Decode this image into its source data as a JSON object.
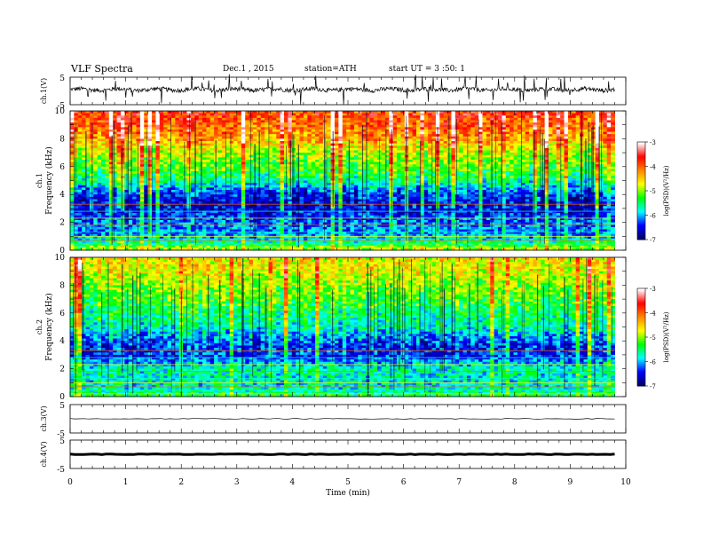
{
  "header": {
    "title": "VLF Spectra",
    "date": "Dec.1 , 2015",
    "station": "station=ATH",
    "start_ut": "start UT = 3 :50: 1"
  },
  "chart_data": [
    {
      "type": "line",
      "panel": "ch1-waveform",
      "ylabel": "ch.1(V)",
      "ylim": [
        -5,
        5
      ],
      "yticks": [
        "5",
        "-5"
      ],
      "xlim": [
        0,
        10
      ],
      "x_end": 9.8
    },
    {
      "type": "heatmap",
      "panel": "ch1-spectrogram",
      "ylabel": "ch.1",
      "ylabel2": "Frequency (kHz)",
      "ylim": [
        0,
        10
      ],
      "yticks": [
        "0",
        "2",
        "4",
        "6",
        "8",
        "10"
      ],
      "xlim": [
        0,
        10
      ],
      "x_end": 9.8,
      "colorbar": {
        "label": "log(PSD)(V²/Hz)",
        "range": [
          -7,
          -3
        ],
        "ticks": [
          "-3",
          "-4",
          "-5",
          "-6",
          "-7"
        ],
        "colormap": [
          "#000066",
          "#0000ff",
          "#00ffff",
          "#00ff00",
          "#ffff00",
          "#ff8800",
          "#ff0000",
          "#ffffff"
        ]
      },
      "intensity_profile": {
        "freq_khz": [
          0,
          0.5,
          1,
          2,
          3,
          3.5,
          4,
          5,
          6,
          7,
          8,
          9,
          10
        ],
        "log_psd": [
          -5.0,
          -5.6,
          -6.2,
          -6.3,
          -6.7,
          -6.8,
          -6.6,
          -5.8,
          -5.4,
          -5.1,
          -4.5,
          -4.2,
          -4.0
        ]
      }
    },
    {
      "type": "heatmap",
      "panel": "ch2-spectrogram",
      "ylabel": "ch.2",
      "ylabel2": "Frequency (kHz)",
      "ylim": [
        0,
        10
      ],
      "yticks": [
        "0",
        "2",
        "4",
        "6",
        "8",
        "10"
      ],
      "xlim": [
        0,
        10
      ],
      "x_end": 9.8,
      "colorbar": {
        "label": "log(PSD)(V²/Hz)",
        "range": [
          -7,
          -3
        ],
        "ticks": [
          "-3",
          "-4",
          "-5",
          "-6",
          "-7"
        ],
        "colormap": [
          "#000066",
          "#0000ff",
          "#00ffff",
          "#00ff00",
          "#ffff00",
          "#ff8800",
          "#ff0000",
          "#ffffff"
        ]
      },
      "intensity_profile": {
        "freq_khz": [
          0,
          0.5,
          1,
          2,
          3,
          3.5,
          4,
          5,
          6,
          7,
          8,
          9,
          10
        ],
        "log_psd": [
          -5.5,
          -5.8,
          -5.9,
          -5.8,
          -6.5,
          -6.6,
          -6.4,
          -5.9,
          -5.7,
          -5.4,
          -5.2,
          -4.9,
          -4.8
        ]
      }
    },
    {
      "type": "line",
      "panel": "ch3-waveform",
      "ylabel": "ch.3(V)",
      "ylim": [
        -5,
        5
      ],
      "yticks": [
        "5",
        "-5"
      ],
      "xlim": [
        0,
        10
      ],
      "x_end": 9.8,
      "level": 0.0
    },
    {
      "type": "line",
      "panel": "ch4-waveform",
      "ylabel": "ch.4(V)",
      "ylim": [
        -5,
        5
      ],
      "yticks": [
        "5",
        "0",
        "-5"
      ],
      "xlim": [
        0,
        10
      ],
      "x_end": 9.8,
      "level": 0.0
    }
  ],
  "x_axis": {
    "label": "Time (min)",
    "ticks": [
      "0",
      "1",
      "2",
      "3",
      "4",
      "5",
      "6",
      "7",
      "8",
      "9",
      "10"
    ]
  }
}
